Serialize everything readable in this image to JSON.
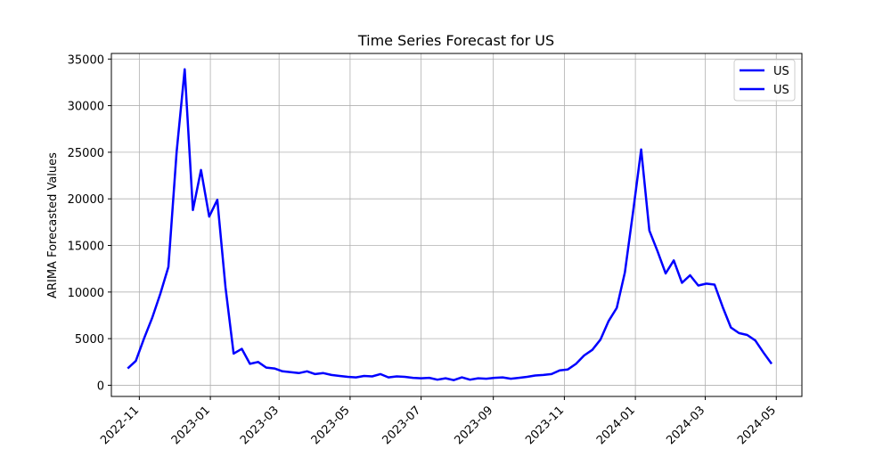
{
  "chart_data": {
    "type": "line",
    "title": "Time Series Forecast for US",
    "xlabel": "",
    "ylabel": "ARIMA Forecasted Values",
    "ylim": [
      -1200,
      35600
    ],
    "xlim": [
      "2022-10-08",
      "2024-05-23"
    ],
    "yticks": [
      0,
      5000,
      10000,
      15000,
      20000,
      25000,
      30000,
      35000
    ],
    "xticks": [
      "2022-11",
      "2023-01",
      "2023-03",
      "2023-05",
      "2023-07",
      "2023-09",
      "2023-11",
      "2024-01",
      "2024-03",
      "2024-05"
    ],
    "grid": true,
    "legend_position": "top-right",
    "legend": [
      "US",
      "US"
    ],
    "line_color": "#0000ff",
    "series": [
      {
        "name": "US",
        "x": [
          "2022-10-22",
          "2022-10-29",
          "2022-11-05",
          "2022-11-12",
          "2022-11-19",
          "2022-11-26",
          "2022-12-03",
          "2022-12-10",
          "2022-12-17",
          "2022-12-24",
          "2022-12-31",
          "2023-01-07",
          "2023-01-14",
          "2023-01-21",
          "2023-01-28",
          "2023-02-04",
          "2023-02-11",
          "2023-02-18",
          "2023-02-25",
          "2023-03-04",
          "2023-03-11",
          "2023-03-18",
          "2023-03-25",
          "2023-04-01",
          "2023-04-08",
          "2023-04-15",
          "2023-04-22",
          "2023-04-29",
          "2023-05-06",
          "2023-05-13",
          "2023-05-20",
          "2023-05-27",
          "2023-06-03",
          "2023-06-10",
          "2023-06-17",
          "2023-06-24",
          "2023-07-01",
          "2023-07-08",
          "2023-07-15",
          "2023-07-22",
          "2023-07-29",
          "2023-08-05",
          "2023-08-12",
          "2023-08-19",
          "2023-08-26",
          "2023-09-02",
          "2023-09-09",
          "2023-09-16",
          "2023-09-23",
          "2023-09-30",
          "2023-10-07",
          "2023-10-14",
          "2023-10-21",
          "2023-10-28",
          "2023-11-04",
          "2023-11-11",
          "2023-11-18",
          "2023-11-25",
          "2023-12-02",
          "2023-12-09",
          "2023-12-16",
          "2023-12-23",
          "2023-12-30",
          "2024-01-06",
          "2024-01-13",
          "2024-01-20",
          "2024-01-27",
          "2024-02-03",
          "2024-02-10",
          "2024-02-17",
          "2024-02-24",
          "2024-03-02",
          "2024-03-09",
          "2024-03-16",
          "2024-03-23",
          "2024-03-30",
          "2024-04-06",
          "2024-04-13",
          "2024-04-20",
          "2024-04-27"
        ],
        "values": [
          1800,
          2600,
          5000,
          7200,
          9800,
          12700,
          25000,
          33900,
          18800,
          23100,
          18100,
          19900,
          10500,
          3400,
          3900,
          2300,
          2500,
          1900,
          1800,
          1500,
          1400,
          1300,
          1500,
          1200,
          1300,
          1100,
          1000,
          900,
          850,
          1000,
          950,
          1200,
          850,
          950,
          900,
          800,
          750,
          800,
          600,
          750,
          550,
          850,
          600,
          750,
          700,
          800,
          850,
          700,
          800,
          900,
          1050,
          1100,
          1200,
          1600,
          1700,
          2300,
          3200,
          3800,
          4900,
          6900,
          8300,
          12100,
          18600,
          25300,
          16600,
          14400,
          12000,
          13400,
          11000,
          11800,
          10700,
          10900,
          10800,
          8400,
          6200,
          5600,
          5400,
          4800,
          3500,
          2300
        ]
      }
    ]
  }
}
